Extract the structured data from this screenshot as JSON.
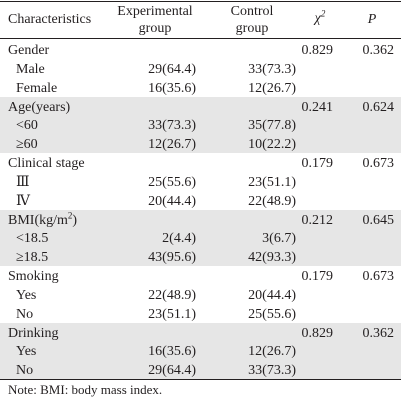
{
  "header": {
    "characteristics": "Characteristics",
    "experimental_line1": "Experimental",
    "experimental_line2": "group",
    "control_line1": "Control",
    "control_line2": "group",
    "chi_symbol": "χ",
    "chi_sup": "2",
    "p_symbol": "P"
  },
  "sections": [
    {
      "label": "Gender",
      "label_sup": "",
      "chi2": "0.829",
      "p": "0.362",
      "shaded": false,
      "rows": [
        {
          "label": "Male",
          "exp": "29(64.4)",
          "ctrl": "33(73.3)"
        },
        {
          "label": "Female",
          "exp": "16(35.6)",
          "ctrl": "12(26.7)"
        }
      ]
    },
    {
      "label": "Age(years)",
      "label_sup": "",
      "chi2": "0.241",
      "p": "0.624",
      "shaded": true,
      "rows": [
        {
          "label": "<60",
          "exp": "33(73.3)",
          "ctrl": "35(77.8)"
        },
        {
          "label": "≥60",
          "exp": "12(26.7)",
          "ctrl": "10(22.2)"
        }
      ]
    },
    {
      "label": "Clinical stage",
      "label_sup": "",
      "chi2": "0.179",
      "p": "0.673",
      "shaded": false,
      "rows": [
        {
          "label": "Ⅲ",
          "exp": "25(55.6)",
          "ctrl": "23(51.1)"
        },
        {
          "label": "Ⅳ",
          "exp": "20(44.4)",
          "ctrl": "22(48.9)"
        }
      ]
    },
    {
      "label": "BMI(kg/m",
      "label_sup": "2",
      "label_tail": ")",
      "chi2": "0.212",
      "p": "0.645",
      "shaded": true,
      "rows": [
        {
          "label": "<18.5",
          "exp": "2(4.4)",
          "ctrl": "3(6.7)"
        },
        {
          "label": "≥18.5",
          "exp": "43(95.6)",
          "ctrl": "42(93.3)"
        }
      ]
    },
    {
      "label": "Smoking",
      "label_sup": "",
      "chi2": "0.179",
      "p": "0.673",
      "shaded": false,
      "rows": [
        {
          "label": "Yes",
          "exp": "22(48.9)",
          "ctrl": "20(44.4)"
        },
        {
          "label": "No",
          "exp": "23(51.1)",
          "ctrl": "25(55.6)"
        }
      ]
    },
    {
      "label": "Drinking",
      "label_sup": "",
      "chi2": "0.829",
      "p": "0.362",
      "shaded": true,
      "rows": [
        {
          "label": "Yes",
          "exp": "16(35.6)",
          "ctrl": "12(26.7)"
        },
        {
          "label": "No",
          "exp": "29(64.4)",
          "ctrl": "33(73.3)"
        }
      ]
    }
  ],
  "note": "Note: BMI: body mass index."
}
